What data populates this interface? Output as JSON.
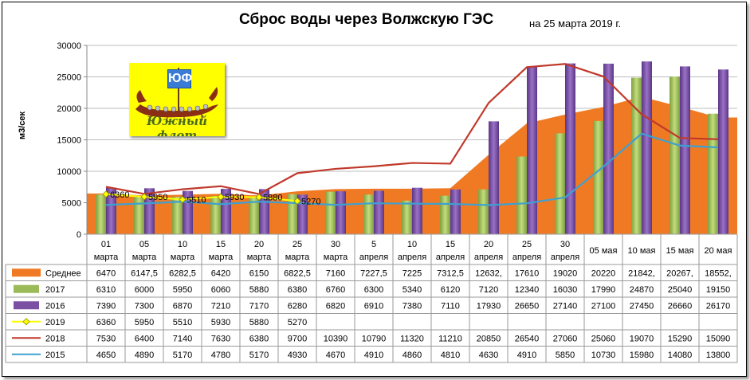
{
  "title": "Сброс воды через Волжскую ГЭС",
  "subtitle": "на 25 марта 2019 г.",
  "logo": {
    "mark": "ЮФ",
    "text": "Южный флот"
  },
  "chart_data": {
    "type": "bar",
    "ylabel": "м3/сек",
    "ylim": [
      0,
      30000
    ],
    "yticks": [
      0,
      5000,
      10000,
      15000,
      20000,
      25000,
      30000
    ],
    "categories": [
      [
        "01",
        "марта"
      ],
      [
        "05",
        "марта"
      ],
      [
        "10",
        "марта"
      ],
      [
        "15",
        "марта"
      ],
      [
        "20",
        "марта"
      ],
      [
        "25",
        "марта"
      ],
      [
        "30",
        "марта"
      ],
      [
        "5",
        "апреля"
      ],
      [
        "10",
        "апреля"
      ],
      [
        "15",
        "апреля"
      ],
      [
        "20",
        "апреля"
      ],
      [
        "25",
        "апреля"
      ],
      [
        "30",
        "апреля"
      ],
      [
        "05 мая",
        ""
      ],
      [
        "10 мая",
        ""
      ],
      [
        "15 мая",
        ""
      ],
      [
        "20 мая",
        ""
      ]
    ],
    "series": [
      {
        "name": "Среднее",
        "kind": "area",
        "color": "#f07a23",
        "values": [
          6470,
          6147.5,
          6282.5,
          6420,
          6150,
          6822.5,
          7160,
          7227.5,
          7225,
          7312.5,
          12632,
          17610,
          19020,
          20220,
          21842,
          20267,
          18552
        ],
        "labels": [
          "6470",
          "6147,5",
          "6282,5",
          "6420",
          "6150",
          "6822,5",
          "7160",
          "7227,5",
          "7225",
          "7312,5",
          "12632,",
          "17610",
          "19020",
          "20220",
          "21842,",
          "20267,",
          "18552,"
        ]
      },
      {
        "name": "2017",
        "kind": "bar",
        "color": "#9bbb59",
        "values": [
          6310,
          6000,
          5950,
          6060,
          5880,
          6380,
          6760,
          6300,
          5340,
          6120,
          7120,
          12340,
          16030,
          17990,
          24870,
          25040,
          19150
        ],
        "labels": [
          "6310",
          "6000",
          "5950",
          "6060",
          "5880",
          "6380",
          "6760",
          "6300",
          "5340",
          "6120",
          "7120",
          "12340",
          "16030",
          "17990",
          "24870",
          "25040",
          "19150"
        ]
      },
      {
        "name": "2016",
        "kind": "bar",
        "color": "#7b4fa2",
        "values": [
          7390,
          7300,
          6870,
          7210,
          7170,
          6280,
          6820,
          6910,
          7380,
          7110,
          17930,
          26650,
          27140,
          27100,
          27450,
          26660,
          26170
        ],
        "labels": [
          "7390",
          "7300",
          "6870",
          "7210",
          "7170",
          "6280",
          "6820",
          "6910",
          "7380",
          "7110",
          "17930",
          "26650",
          "27140",
          "27100",
          "27450",
          "26660",
          "26170"
        ]
      },
      {
        "name": "2019",
        "kind": "line-marker",
        "color": "#ffff00",
        "values": [
          6360,
          5950,
          5510,
          5930,
          5880,
          5270,
          null,
          null,
          null,
          null,
          null,
          null,
          null,
          null,
          null,
          null,
          null
        ],
        "labels": [
          "6360",
          "5950",
          "5510",
          "5930",
          "5880",
          "5270",
          "",
          "",
          "",
          "",
          "",
          "",
          "",
          "",
          "",
          "",
          ""
        ]
      },
      {
        "name": "2018",
        "kind": "line",
        "color": "#c0392b",
        "values": [
          7530,
          6400,
          7140,
          7630,
          6380,
          9700,
          10390,
          10790,
          11320,
          11210,
          20850,
          26540,
          27060,
          25060,
          19070,
          15290,
          15090
        ],
        "labels": [
          "7530",
          "6400",
          "7140",
          "7630",
          "6380",
          "9700",
          "10390",
          "10790",
          "11320",
          "11210",
          "20850",
          "26540",
          "27060",
          "25060",
          "19070",
          "15290",
          "15090"
        ]
      },
      {
        "name": "2015",
        "kind": "line",
        "color": "#3ea0d0",
        "values": [
          4650,
          4890,
          5170,
          4780,
          5170,
          4930,
          4670,
          4910,
          4860,
          4810,
          4630,
          4910,
          5850,
          10730,
          15980,
          14080,
          13800
        ],
        "labels": [
          "4650",
          "4890",
          "5170",
          "4780",
          "5170",
          "4930",
          "4670",
          "4910",
          "4860",
          "4810",
          "4630",
          "4910",
          "5850",
          "10730",
          "15980",
          "14080",
          "13800"
        ]
      }
    ],
    "data_labels_series": "2019",
    "grid": true,
    "legend": "table"
  }
}
